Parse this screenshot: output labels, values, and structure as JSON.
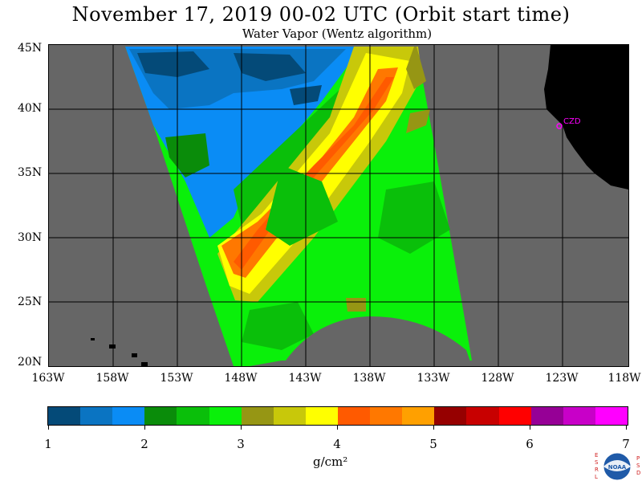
{
  "header": {
    "title": "November 17, 2019  00-02 UTC  (Orbit start time)",
    "subtitle": "Water Vapor (Wentz algorithm)"
  },
  "map": {
    "lat_labels": [
      "45N",
      "40N",
      "35N",
      "30N",
      "25N",
      "20N"
    ],
    "lon_labels": [
      "163W",
      "158W",
      "153W",
      "148W",
      "143W",
      "138W",
      "133W",
      "128W",
      "123W",
      "118W"
    ],
    "station_label": "CZD",
    "colors": {
      "background": "#666666",
      "land": "#000000",
      "grid": "#000000",
      "station": "#ff00ff"
    }
  },
  "colorbar": {
    "colors": [
      "#044a78",
      "#0a74c2",
      "#0a8cf5",
      "#0a8c0a",
      "#0abf0a",
      "#0af00a",
      "#969614",
      "#c8c80a",
      "#ffff00",
      "#ff5a00",
      "#ff7800",
      "#ffa000",
      "#960000",
      "#c80000",
      "#ff0000",
      "#960096",
      "#c800c8",
      "#ff00ff"
    ],
    "ticks": [
      "1",
      "2",
      "3",
      "4",
      "5",
      "6",
      "7"
    ],
    "units": "g/cm²"
  },
  "logo": {
    "left_letters": [
      "E",
      "S",
      "R",
      "L"
    ],
    "right_letters": [
      "P",
      "S",
      "D"
    ],
    "center_text": "NOAA"
  }
}
